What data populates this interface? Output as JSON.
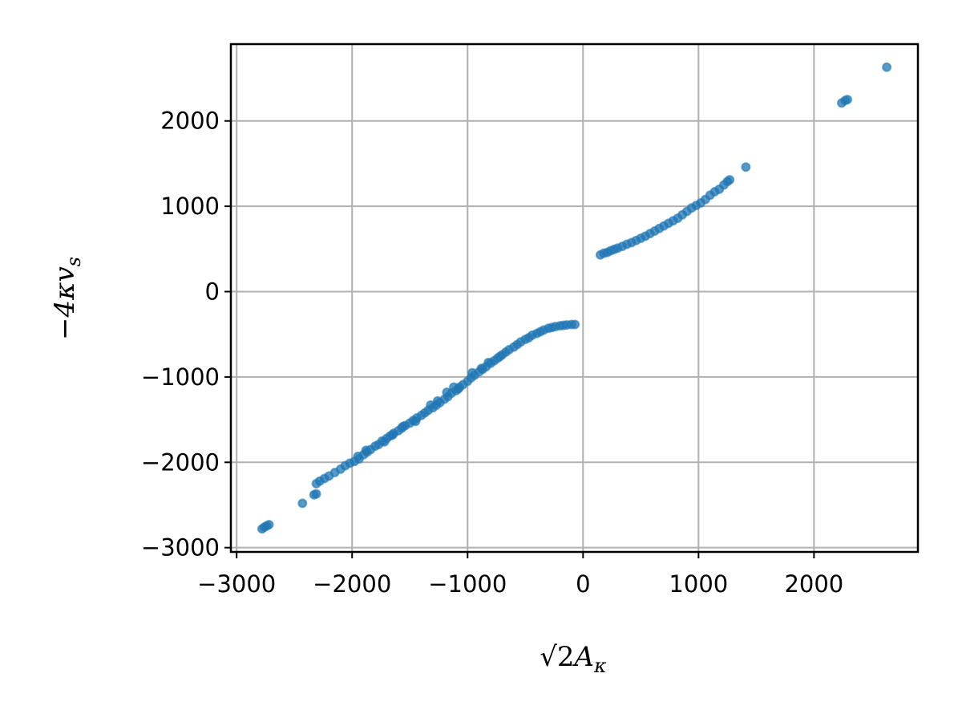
{
  "chart_data": {
    "type": "scatter",
    "xlabel": "√2A_κ",
    "ylabel": "−4κv_s",
    "xlim": [
      -3050,
      2900
    ],
    "ylim": [
      -3050,
      2900
    ],
    "xticks": [
      -3000,
      -2000,
      -1000,
      0,
      1000,
      2000
    ],
    "yticks": [
      -3000,
      -2000,
      -1000,
      0,
      1000,
      2000
    ],
    "xtick_labels": [
      "−3000",
      "−2000",
      "−1000",
      "0",
      "1000",
      "2000"
    ],
    "ytick_labels": [
      "−3000",
      "−2000",
      "−1000",
      "0",
      "1000",
      "2000"
    ],
    "grid": true,
    "marker_color": "#1f77b4",
    "series": [
      {
        "points": [
          [
            -2780,
            -2780
          ],
          [
            -2760,
            -2760
          ],
          [
            -2740,
            -2745
          ],
          [
            -2720,
            -2730
          ],
          [
            -2430,
            -2480
          ],
          [
            -2330,
            -2380
          ],
          [
            -2310,
            -2370
          ],
          [
            -2310,
            -2250
          ],
          [
            -2280,
            -2220
          ],
          [
            -2240,
            -2190
          ],
          [
            -2200,
            -2160
          ],
          [
            -2150,
            -2120
          ],
          [
            -2100,
            -2080
          ],
          [
            -2060,
            -2040
          ],
          [
            -2020,
            -2010
          ],
          [
            -1980,
            -1990
          ],
          [
            -1940,
            -1960
          ],
          [
            -1900,
            -1910
          ],
          [
            -1870,
            -1880
          ],
          [
            -1840,
            -1850
          ],
          [
            -1800,
            -1810
          ],
          [
            -1770,
            -1790
          ],
          [
            -1740,
            -1750
          ],
          [
            -1700,
            -1720
          ],
          [
            -1670,
            -1690
          ],
          [
            -1640,
            -1660
          ],
          [
            -1600,
            -1630
          ],
          [
            -1570,
            -1600
          ],
          [
            -1540,
            -1570
          ],
          [
            -1500,
            -1540
          ],
          [
            -1470,
            -1510
          ],
          [
            -1440,
            -1480
          ],
          [
            -1400,
            -1450
          ],
          [
            -1370,
            -1420
          ],
          [
            -1340,
            -1390
          ],
          [
            -1300,
            -1360
          ],
          [
            -1270,
            -1330
          ],
          [
            -1240,
            -1300
          ],
          [
            -1200,
            -1260
          ],
          [
            -1170,
            -1230
          ],
          [
            -1140,
            -1190
          ],
          [
            -1100,
            -1160
          ],
          [
            -1070,
            -1120
          ],
          [
            -1040,
            -1090
          ],
          [
            -1000,
            -1050
          ],
          [
            -970,
            -1010
          ],
          [
            -940,
            -980
          ],
          [
            -900,
            -940
          ],
          [
            -870,
            -910
          ],
          [
            -840,
            -880
          ],
          [
            -800,
            -840
          ],
          [
            -770,
            -810
          ],
          [
            -740,
            -780
          ],
          [
            -700,
            -740
          ],
          [
            -670,
            -710
          ],
          [
            -640,
            -680
          ],
          [
            -600,
            -650
          ],
          [
            -570,
            -620
          ],
          [
            -540,
            -590
          ],
          [
            -500,
            -560
          ],
          [
            -470,
            -540
          ],
          [
            -440,
            -510
          ],
          [
            -400,
            -490
          ],
          [
            -370,
            -470
          ],
          [
            -340,
            -450
          ],
          [
            -300,
            -430
          ],
          [
            -270,
            -420
          ],
          [
            -240,
            -410
          ],
          [
            -200,
            -400
          ],
          [
            -170,
            -395
          ],
          [
            -140,
            -390
          ],
          [
            -100,
            -385
          ],
          [
            -70,
            -385
          ],
          [
            -1880,
            -1860
          ],
          [
            -1720,
            -1760
          ],
          [
            -1560,
            -1580
          ],
          [
            -1450,
            -1520
          ],
          [
            -1180,
            -1180
          ],
          [
            -1120,
            -1120
          ],
          [
            -960,
            -950
          ],
          [
            -820,
            -830
          ],
          [
            -1320,
            -1330
          ],
          [
            -1650,
            -1680
          ],
          [
            -1950,
            -1930
          ],
          [
            -1260,
            -1280
          ],
          [
            -1080,
            -1140
          ],
          [
            -880,
            -900
          ],
          [
            -720,
            -760
          ],
          [
            150,
            430
          ],
          [
            180,
            450
          ],
          [
            210,
            460
          ],
          [
            240,
            480
          ],
          [
            270,
            495
          ],
          [
            300,
            510
          ],
          [
            340,
            530
          ],
          [
            380,
            555
          ],
          [
            420,
            575
          ],
          [
            460,
            600
          ],
          [
            500,
            625
          ],
          [
            540,
            650
          ],
          [
            580,
            680
          ],
          [
            620,
            710
          ],
          [
            660,
            740
          ],
          [
            700,
            770
          ],
          [
            740,
            800
          ],
          [
            780,
            830
          ],
          [
            820,
            860
          ],
          [
            860,
            900
          ],
          [
            900,
            940
          ],
          [
            940,
            980
          ],
          [
            980,
            1010
          ],
          [
            1020,
            1040
          ],
          [
            1060,
            1080
          ],
          [
            1100,
            1130
          ],
          [
            1140,
            1170
          ],
          [
            1180,
            1200
          ],
          [
            1220,
            1250
          ],
          [
            1250,
            1290
          ],
          [
            1270,
            1310
          ],
          [
            1410,
            1460
          ],
          [
            2240,
            2210
          ],
          [
            2270,
            2240
          ],
          [
            2290,
            2250
          ],
          [
            2630,
            2630
          ]
        ]
      }
    ]
  }
}
